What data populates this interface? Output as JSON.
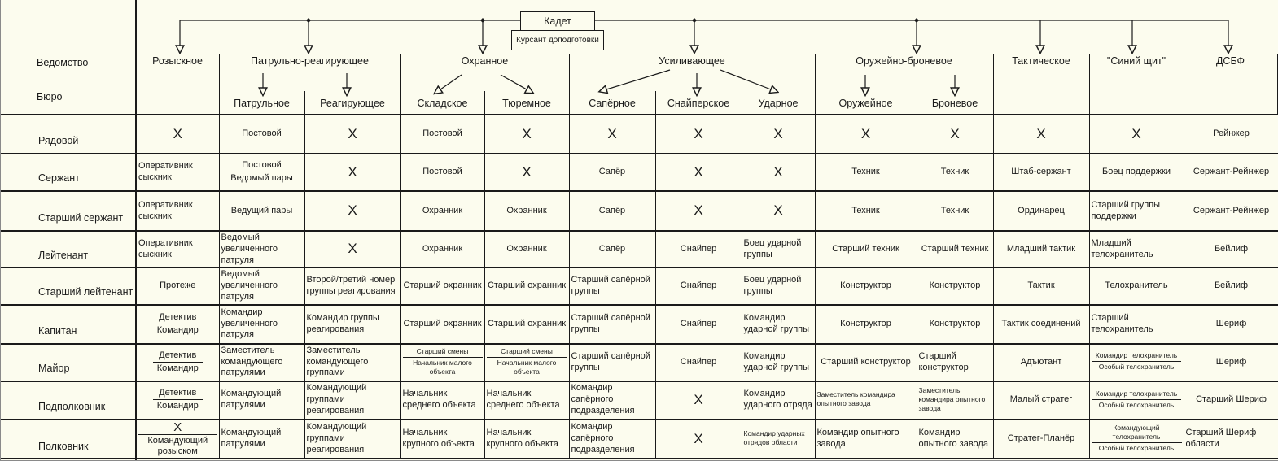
{
  "colors": {
    "background": "#FCFCEE",
    "line": "#1A1A1A"
  },
  "org": {
    "root": "Кадет",
    "root_note": "Курсант доподготовки"
  },
  "axis": {
    "department_label": "Ведомство",
    "bureau_label": "Бюро"
  },
  "departments": [
    "Розыскное",
    "Патрульно-реагирующее",
    "Охранное",
    "Усиливающее",
    "Оружейно-броневое",
    "Тактическое",
    "\"Синий щит\"",
    "ДСБФ"
  ],
  "bureaus": [
    "Патрульное",
    "Реагирующее",
    "Складское",
    "Тюремное",
    "Сапёрное",
    "Снайперское",
    "Ударное",
    "Оружейное",
    "Броневое"
  ],
  "columns": [
    "Розыскное",
    "Патрульное",
    "Реагирующее",
    "Складское",
    "Тюремное",
    "Сапёрное",
    "Снайперское",
    "Ударное",
    "Оружейное",
    "Броневое",
    "Тактическое",
    "\"Синий щит\"",
    "ДСБФ"
  ],
  "x_symbol": "X",
  "rows": [
    {
      "rank": "Рядовой",
      "cells": [
        {
          "x": true
        },
        "Постовой",
        {
          "x": true
        },
        "Постовой",
        {
          "x": true
        },
        {
          "x": true
        },
        {
          "x": true
        },
        {
          "x": true
        },
        {
          "x": true
        },
        {
          "x": true
        },
        {
          "x": true
        },
        {
          "x": true
        },
        "Рейнжер"
      ]
    },
    {
      "rank": "Сержант",
      "cells": [
        "Оперативник сыскник",
        {
          "split": [
            "Постовой",
            "Ведомый пары"
          ]
        },
        {
          "x": true
        },
        "Постовой",
        {
          "x": true
        },
        "Сапёр",
        {
          "x": true
        },
        {
          "x": true
        },
        "Техник",
        "Техник",
        "Штаб-сержант",
        "Боец поддержки",
        "Сержант-Рейнжер"
      ]
    },
    {
      "rank": "Старший сержант",
      "cells": [
        "Оперативник сыскник",
        "Ведущий пары",
        {
          "x": true
        },
        "Охранник",
        "Охранник",
        "Сапёр",
        {
          "x": true
        },
        {
          "x": true
        },
        "Техник",
        "Техник",
        "Ординарец",
        "Старший группы поддержки",
        "Сержант-Рейнжер"
      ]
    },
    {
      "rank": "Лейтенант",
      "cells": [
        "Оперативник сыскник",
        "Ведомый увеличенного патруля",
        {
          "x": true
        },
        "Охранник",
        "Охранник",
        "Сапёр",
        "Снайпер",
        "Боец ударной группы",
        "Старший техник",
        "Старший техник",
        "Младший тактик",
        "Младший телохранитель",
        "Бейлиф"
      ]
    },
    {
      "rank": "Старший лейтенант",
      "cells": [
        "Протеже",
        "Ведомый увеличенного патруля",
        "Второй/третий номер группы реагирования",
        "Старший охранник",
        "Старший охранник",
        "Старший сапёрной группы",
        "Снайпер",
        "Боец ударной группы",
        "Конструктор",
        "Конструктор",
        "Тактик",
        "Телохранитель",
        "Бейлиф"
      ]
    },
    {
      "rank": "Капитан",
      "cells": [
        {
          "split": [
            "Детектив",
            "Командир"
          ]
        },
        "Командир увеличенного патруля",
        "Командир группы реагирования",
        "Старший охранник",
        "Старший охранник",
        "Старший сапёрной группы",
        "Снайпер",
        "Командир ударной группы",
        "Конструктор",
        "Конструктор",
        "Тактик соединений",
        "Старший телохранитель",
        "Шериф"
      ]
    },
    {
      "rank": "Майор",
      "cells": [
        {
          "split": [
            "Детектив",
            "Командир"
          ]
        },
        "Заместитель командующего патрулями",
        "Заместитель командующего группами",
        {
          "split": [
            "Старший смены",
            "Начальник малого объекта"
          ],
          "sm": true
        },
        {
          "split": [
            "Старший смены",
            "Начальник малого объекта"
          ],
          "sm": true
        },
        "Старший сапёрной группы",
        "Снайпер",
        "Командир ударной группы",
        "Старший конструктор",
        "Старший конструктор",
        "Адъютант",
        {
          "split": [
            "Командир телохранитель",
            "Особый телохранитель"
          ],
          "sm": true
        },
        "Шериф"
      ]
    },
    {
      "rank": "Подполковник",
      "cells": [
        {
          "split": [
            "Детектив",
            "Командир"
          ]
        },
        "Командующий патрулями",
        "Командующий группами реагирования",
        "Начальник среднего объекта",
        "Начальник среднего объекта",
        "Командир сапёрного подразделения",
        {
          "x": true
        },
        "Командир ударного отряда",
        {
          "t": "Заместитель командира опытного завода",
          "sm": true
        },
        {
          "t": "Заместитель командира опытного завода",
          "sm": true
        },
        "Малый стратег",
        {
          "split": [
            "Командир телохранитель",
            "Особый телохранитель"
          ],
          "sm": true
        },
        "Старший Шериф"
      ]
    },
    {
      "rank": "Полковник",
      "cells": [
        {
          "split": [
            "X",
            "Командующий розыском"
          ]
        },
        "Командующий патрулями",
        "Командующий группами реагирования",
        "Начальник крупного объекта",
        "Начальник крупного объекта",
        "Командир сапёрного подразделения",
        {
          "x": true
        },
        {
          "t": "Командир ударных отрядов области",
          "sm": true
        },
        "Командир опытного завода",
        "Командир опытного завода",
        "Стратег-Планёр",
        {
          "split": [
            "Командующий телохранитель",
            "Особый телохранитель"
          ],
          "sm": true
        },
        "Старший Шериф области"
      ]
    }
  ]
}
